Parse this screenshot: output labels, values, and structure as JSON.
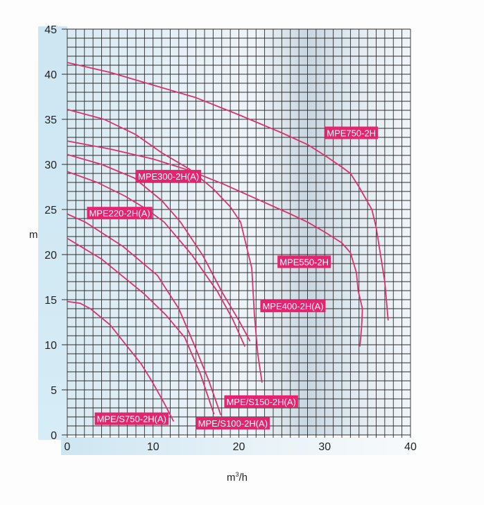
{
  "chart_data": {
    "type": "line",
    "title": "",
    "xlabel": "m³/h",
    "ylabel": "m",
    "xlim": [
      0,
      40
    ],
    "ylim": [
      0,
      45
    ],
    "xticks": [
      "0",
      "10",
      "20",
      "30",
      "40"
    ],
    "yticks": [
      "0",
      "5",
      "10",
      "15",
      "20",
      "25",
      "30",
      "35",
      "40",
      "45"
    ],
    "grid": true,
    "grid_step": {
      "x": 1,
      "y": 1
    },
    "line_color": "#d8326e",
    "label_bg": "#e5246f",
    "series": [
      {
        "name": "MPE750-2H",
        "label_at": [
          30,
          33.5
        ],
        "x": [
          0,
          5,
          10,
          15,
          20,
          25,
          28,
          30,
          32,
          33,
          34,
          35.5,
          36,
          37,
          37.4
        ],
        "y": [
          41.3,
          40.2,
          38.8,
          37.4,
          35.5,
          33.5,
          32.2,
          31,
          29.7,
          29,
          27.5,
          25,
          23,
          17,
          12.7
        ]
      },
      {
        "name": "MPE400-2H(A)",
        "label_at": [
          22.5,
          14.3
        ],
        "x": [
          0,
          4.3,
          8,
          11,
          14.2,
          17,
          19,
          20.2,
          21.5,
          21.8,
          22.2,
          22.7
        ],
        "y": [
          36.1,
          35,
          33.3,
          31.3,
          29.5,
          27.3,
          25.3,
          23.6,
          18.5,
          13.4,
          9,
          5.8
        ]
      },
      {
        "name": "MPE550-2H",
        "label_at": [
          24.5,
          19.2
        ],
        "x": [
          0,
          5,
          10,
          14,
          18,
          22,
          26,
          28,
          30,
          32,
          33,
          33.7,
          33.9,
          34.4,
          34.3,
          34.1
        ],
        "y": [
          32.6,
          31.7,
          30.6,
          29.4,
          27.9,
          26.2,
          24.5,
          23.6,
          22.5,
          21.3,
          20.2,
          18,
          16,
          14,
          12,
          9.8
        ]
      },
      {
        "name": "MPE300-2H(A)",
        "label_at": [
          8,
          28.7
        ],
        "x": [
          0,
          4,
          7.8,
          11,
          13.2,
          15.8,
          18,
          20,
          21.3
        ],
        "y": [
          31.1,
          30,
          28.5,
          26,
          23.6,
          19.9,
          15.9,
          12.7,
          10.4
        ]
      },
      {
        "name": "MPE220-2H(A)",
        "label_at": [
          2.3,
          24.6
        ],
        "x": [
          0,
          3.5,
          6.7,
          9.3,
          11.3,
          14.5,
          17.5,
          19.3,
          20.7
        ],
        "y": [
          29.2,
          28,
          26.5,
          25,
          23.6,
          20,
          15.9,
          12.8,
          9.8
        ]
      },
      {
        "name": "MPE/S150-2H(A)",
        "label_at": [
          18.3,
          3.7
        ],
        "x": [
          0,
          2.1,
          6.5,
          10.5,
          13,
          14.8,
          16.5,
          17.9
        ],
        "y": [
          24.5,
          23.6,
          20.9,
          17.7,
          14,
          10,
          6,
          2.2
        ]
      },
      {
        "name": "MPE/S100-2H(A)",
        "label_at": [
          15,
          1.3
        ],
        "x": [
          0,
          4,
          8.9,
          11.5,
          13.7,
          15.5,
          17.1
        ],
        "y": [
          21.8,
          19.5,
          15.7,
          13.3,
          10.8,
          6.8,
          2.3
        ]
      },
      {
        "name": "MPE/S750-2H(A)",
        "label_at": [
          3.2,
          1.8
        ],
        "x": [
          0,
          1.5,
          2.7,
          5,
          7,
          8.6,
          9.9,
          11.2,
          12.4
        ],
        "y": [
          14.8,
          14.6,
          14,
          12.2,
          9.8,
          7.9,
          5.9,
          3.7,
          1.5
        ]
      }
    ]
  }
}
